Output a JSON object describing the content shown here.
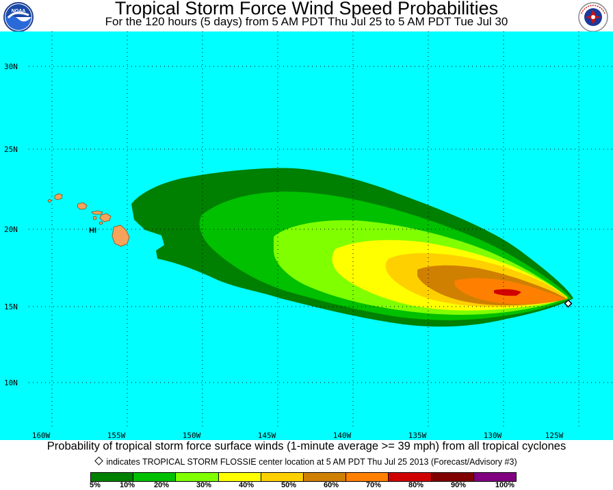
{
  "header": {
    "title": "Tropical Storm Force Wind Speed Probabilities",
    "subtitle": "For the 120 hours (5 days) from 5 AM PDT Thu Jul 25 to 5 AM PDT Tue Jul 30"
  },
  "logos": {
    "left": "NOAA",
    "right": "National Weather Service"
  },
  "map": {
    "ocean_color": "#00ffff",
    "land_color": "#f5a25a",
    "lat_labels": [
      "30N",
      "25N",
      "20N",
      "15N",
      "10N"
    ],
    "lon_labels": [
      "160W",
      "155W",
      "150W",
      "145W",
      "140W",
      "135W",
      "130W",
      "125W"
    ],
    "island_label": "HI",
    "storm_center": {
      "lat": 15.2,
      "lon": -124.6
    }
  },
  "footer": {
    "description": "Probability of tropical storm force surface winds (1-minute average >= 39 mph) from all tropical cyclones",
    "note": "indicates TROPICAL STORM FLOSSIE center location at 5 AM PDT Thu Jul 25 2013 (Forecast/Advisory #3)"
  },
  "legend": {
    "colors": [
      "#008000",
      "#00c000",
      "#00e000",
      "#80ff00",
      "#ffff00",
      "#ffd000",
      "#d08000",
      "#ff8000",
      "#d00000",
      "#800000",
      "#800080"
    ],
    "labels": [
      "5%",
      "10%",
      "20%",
      "30%",
      "40%",
      "50%",
      "60%",
      "70%",
      "80%",
      "90%",
      "100%"
    ]
  }
}
